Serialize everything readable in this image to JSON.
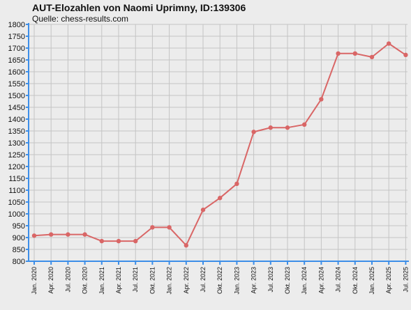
{
  "chart_data": {
    "type": "line",
    "title": "AUT-Elozahlen von Naomi Uprimny, ID:139306",
    "subtitle": "Quelle: chess-results.com",
    "xlabel": "",
    "ylabel": "",
    "ylim": [
      800,
      1800
    ],
    "ytick_step": 50,
    "grid": true,
    "categories": [
      "Jan. 2020",
      "Apr. 2020",
      "Jul. 2020",
      "Okt. 2020",
      "Jan. 2021",
      "Apr. 2021",
      "Jul. 2021",
      "Okt. 2021",
      "Jan. 2022",
      "Apr. 2022",
      "Jul. 2022",
      "Okt. 2022",
      "Jan. 2023",
      "Apr. 2023",
      "Jul. 2023",
      "Okt. 2023",
      "Jan. 2024",
      "Apr. 2024",
      "Jul. 2024",
      "Okt. 2024",
      "Jan. 2025",
      "Apr. 2025",
      "Jul. 2025"
    ],
    "series": [
      {
        "values": [
          908,
          913,
          913,
          913,
          885,
          885,
          885,
          943,
          943,
          867,
          1017,
          1067,
          1127,
          1346,
          1364,
          1364,
          1377,
          1484,
          1677,
          1677,
          1662,
          1719,
          1671
        ],
        "color": "#d96666"
      }
    ],
    "colors": {
      "axis": "#3c8ee8",
      "grid": "#c4c4c4",
      "background": "#ececec"
    }
  }
}
